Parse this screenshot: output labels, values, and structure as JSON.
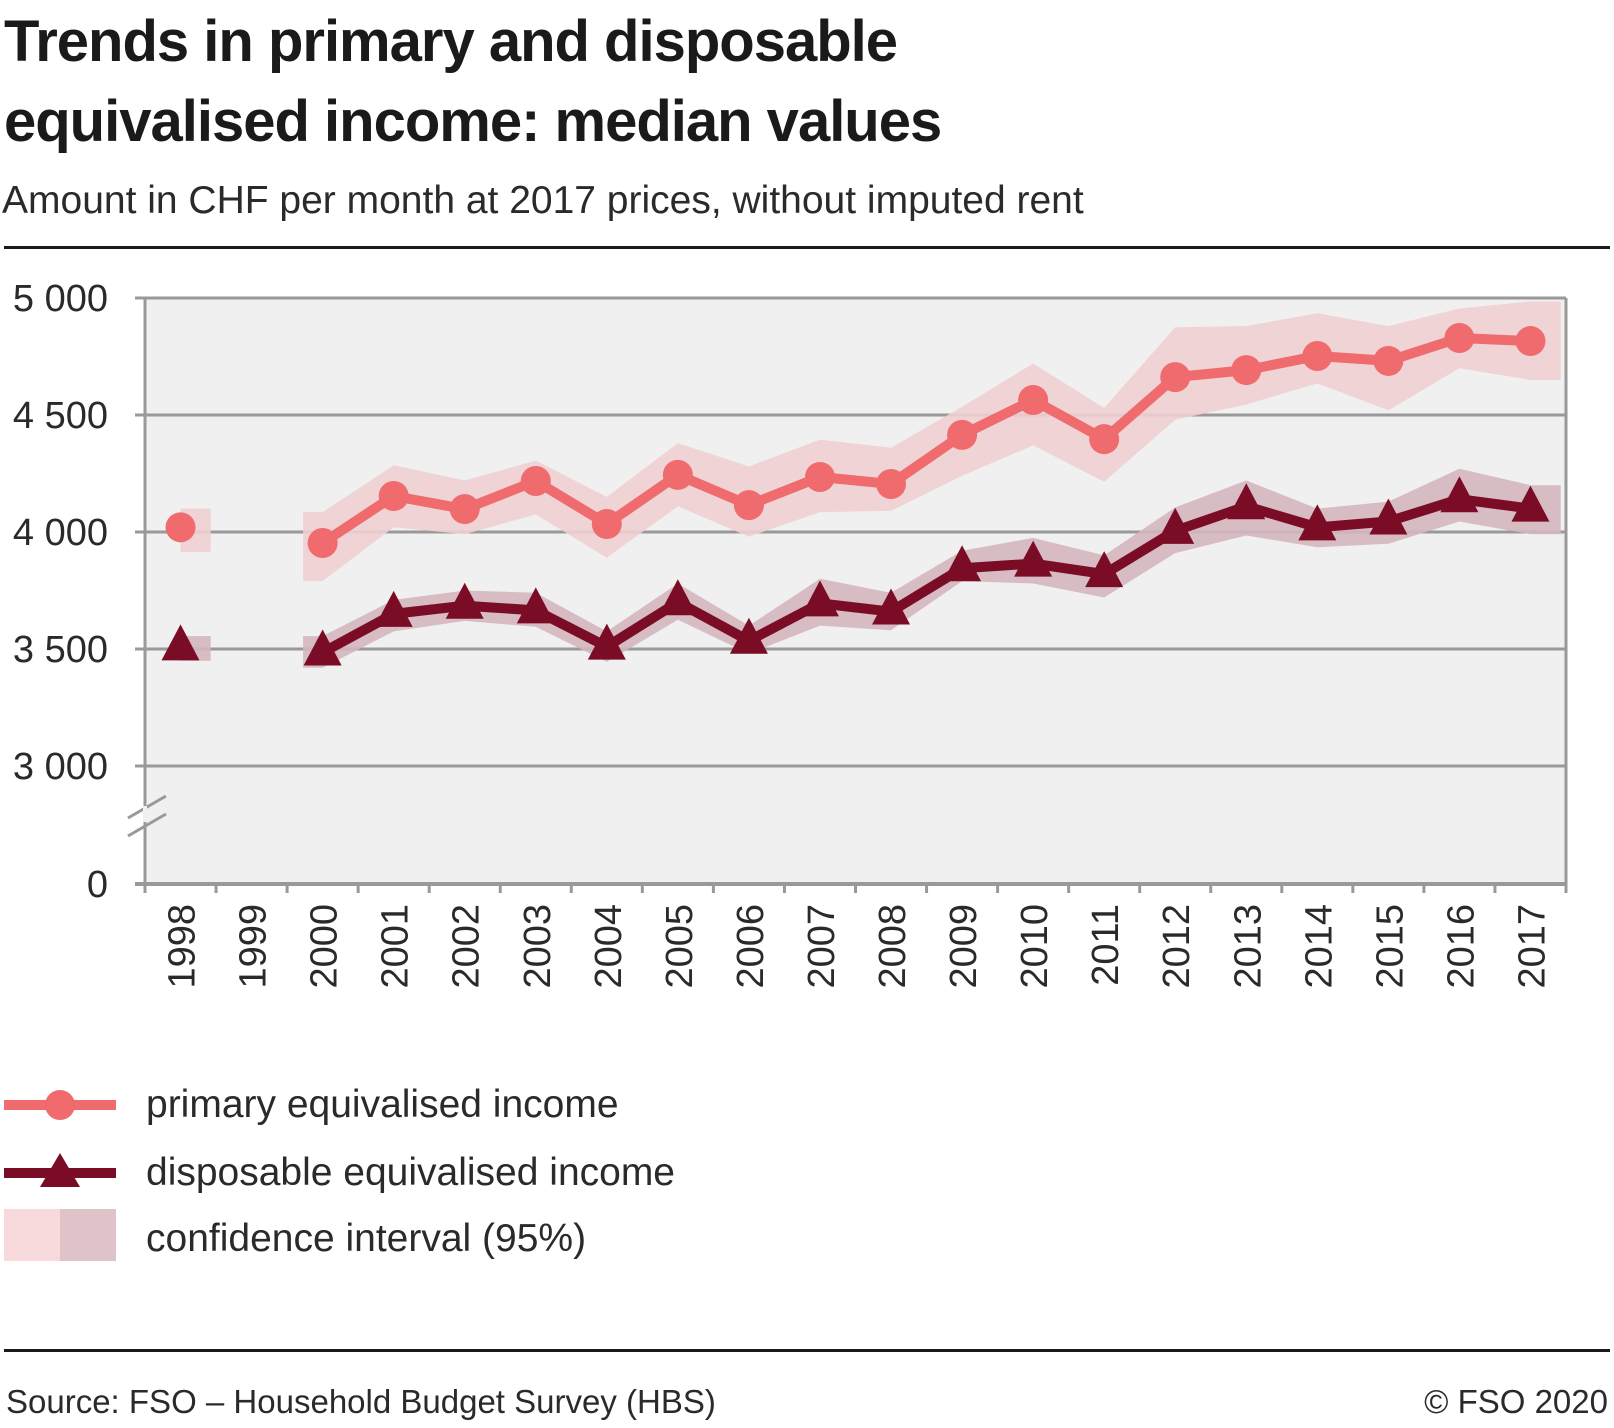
{
  "header": {
    "title_line1": "Trends in primary and disposable",
    "title_line2": "equivalised income: median values",
    "subtitle": "Amount in CHF per month at 2017 prices, without imputed rent"
  },
  "colors": {
    "primary": "#ef6b6e",
    "disposable": "#7b0c26",
    "primary_ci": "#f0cfd2",
    "disposable_ci": "#d4b7be",
    "plot_bg": "#f0f0f0",
    "grid": "#999999"
  },
  "legend": {
    "items": [
      {
        "label": "primary equivalised income",
        "icon": "line-circle-marker-icon"
      },
      {
        "label": "disposable equivalised income",
        "icon": "line-triangle-marker-icon"
      },
      {
        "label": "confidence interval (95%)",
        "icon": "confidence-band-swatch-icon"
      }
    ]
  },
  "footer": {
    "source": "Source: FSO – Household Budget Survey (HBS)",
    "copyright": "© FSO 2020"
  },
  "chart_data": {
    "type": "line",
    "title": "Trends in primary and disposable equivalised income: median values",
    "subtitle": "Amount in CHF per month at 2017 prices, without imputed rent",
    "xlabel": "",
    "ylabel": "",
    "x": [
      "1998",
      "1999",
      "2000",
      "2001",
      "2002",
      "2003",
      "2004",
      "2005",
      "2006",
      "2007",
      "2008",
      "2009",
      "2010",
      "2011",
      "2012",
      "2013",
      "2014",
      "2015",
      "2016",
      "2017"
    ],
    "y_ticks": [
      0,
      3000,
      3500,
      4000,
      4500,
      5000
    ],
    "y_tick_labels": [
      "0",
      "3 000",
      "3 500",
      "4 000",
      "4 500",
      "5 000"
    ],
    "y_axis_break": "between 0 and 3 000",
    "ylim": [
      3000,
      5000
    ],
    "grid": true,
    "legend_position": "bottom",
    "series": [
      {
        "name": "primary equivalised income",
        "marker": "circle",
        "values": [
          4020,
          null,
          3953,
          4154,
          4098,
          4218,
          4034,
          4244,
          4115,
          4235,
          4205,
          4415,
          4564,
          4397,
          4662,
          4692,
          4752,
          4731,
          4829,
          4816
        ],
        "ci_upper": [
          4100,
          null,
          4085,
          4285,
          4220,
          4305,
          4150,
          4380,
          4280,
          4395,
          4360,
          4535,
          4720,
          4530,
          4875,
          4880,
          4935,
          4880,
          4955,
          4985
        ],
        "ci_lower": [
          3915,
          null,
          3790,
          4020,
          3990,
          4075,
          3890,
          4110,
          3980,
          4085,
          4090,
          4240,
          4370,
          4215,
          4480,
          4545,
          4635,
          4520,
          4700,
          4650
        ]
      },
      {
        "name": "disposable equivalised income",
        "marker": "triangle",
        "values": [
          3507,
          null,
          3485,
          3650,
          3685,
          3665,
          3510,
          3700,
          3535,
          3695,
          3660,
          3845,
          3865,
          3820,
          4005,
          4110,
          4020,
          4045,
          4140,
          4100
        ],
        "ci_upper": [
          3555,
          null,
          3555,
          3710,
          3750,
          3740,
          3575,
          3780,
          3600,
          3800,
          3740,
          3920,
          3975,
          3900,
          4105,
          4220,
          4100,
          4130,
          4270,
          4200
        ],
        "ci_lower": [
          3450,
          null,
          3420,
          3575,
          3620,
          3595,
          3445,
          3625,
          3480,
          3600,
          3580,
          3790,
          3780,
          3720,
          3910,
          3985,
          3935,
          3950,
          4045,
          3990
        ]
      }
    ]
  }
}
